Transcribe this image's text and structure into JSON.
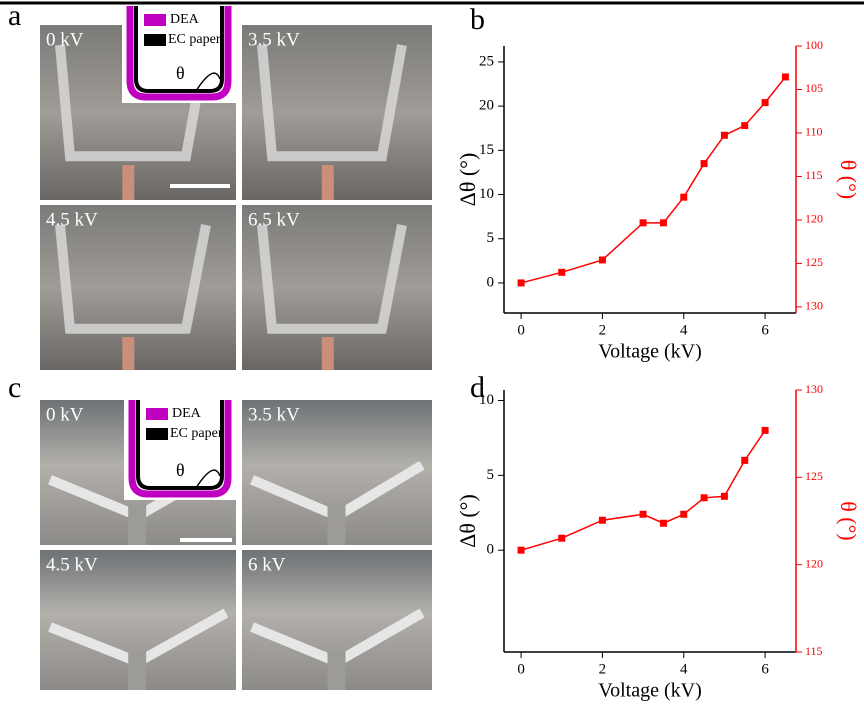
{
  "photos": {
    "a": {
      "panel_label": "a",
      "labels": [
        "0 kV",
        "3.5 kV",
        "4.5 kV",
        "6.5 kV"
      ],
      "inset": {
        "dea": "DEA",
        "paper": "EC paper",
        "angle": "θ"
      }
    },
    "c": {
      "panel_label": "c",
      "labels": [
        "0 kV",
        "3.5 kV",
        "4.5 kV",
        "6 kV"
      ],
      "inset": {
        "dea": "DEA",
        "paper": "EC paper",
        "angle": "θ"
      }
    }
  },
  "chart_data": [
    {
      "type": "line",
      "panel_label": "b",
      "xlabel": "Voltage (kV)",
      "ylabel": "Δθ (°)",
      "y2label": "θ (°)",
      "x": [
        0,
        1,
        2,
        3,
        3.5,
        4,
        4.5,
        5,
        5.5,
        6,
        6.5
      ],
      "series": [
        {
          "color": "#ff0000",
          "values": [
            0,
            1.2,
            2.6,
            6.8,
            6.8,
            9.7,
            13.5,
            16.7,
            17.8,
            20.4,
            23.3
          ]
        }
      ],
      "xlim": [
        -0.42,
        6.76
      ],
      "xticks": [
        0,
        2,
        4,
        6
      ],
      "ylim": [
        -3.4,
        26.8
      ],
      "yticks": [
        0,
        5,
        10,
        15,
        20,
        25
      ],
      "y2lim": [
        130.7,
        100
      ],
      "y2ticks": [
        100,
        105,
        110,
        115,
        120,
        125,
        130
      ],
      "y2color": "#ff0000"
    },
    {
      "type": "line",
      "panel_label": "d",
      "xlabel": "Voltage (kV)",
      "ylabel": "Δθ (°)",
      "y2label": "θ (°)",
      "x": [
        0,
        1,
        2,
        3,
        3.5,
        4,
        4.5,
        5,
        5.5,
        6
      ],
      "series": [
        {
          "color": "#ff0000",
          "values": [
            0,
            0.8,
            2,
            2.4,
            1.8,
            2.4,
            3.5,
            3.6,
            6,
            8
          ]
        }
      ],
      "xlim": [
        -0.42,
        6.76
      ],
      "xticks": [
        0,
        2,
        4,
        6
      ],
      "ylim": [
        -6.8,
        10.7
      ],
      "yticks": [
        0,
        5,
        10
      ],
      "y2lim": [
        115,
        130
      ],
      "y2ticks": [
        115,
        120,
        125,
        130
      ],
      "y2color": "#ff0000"
    }
  ]
}
